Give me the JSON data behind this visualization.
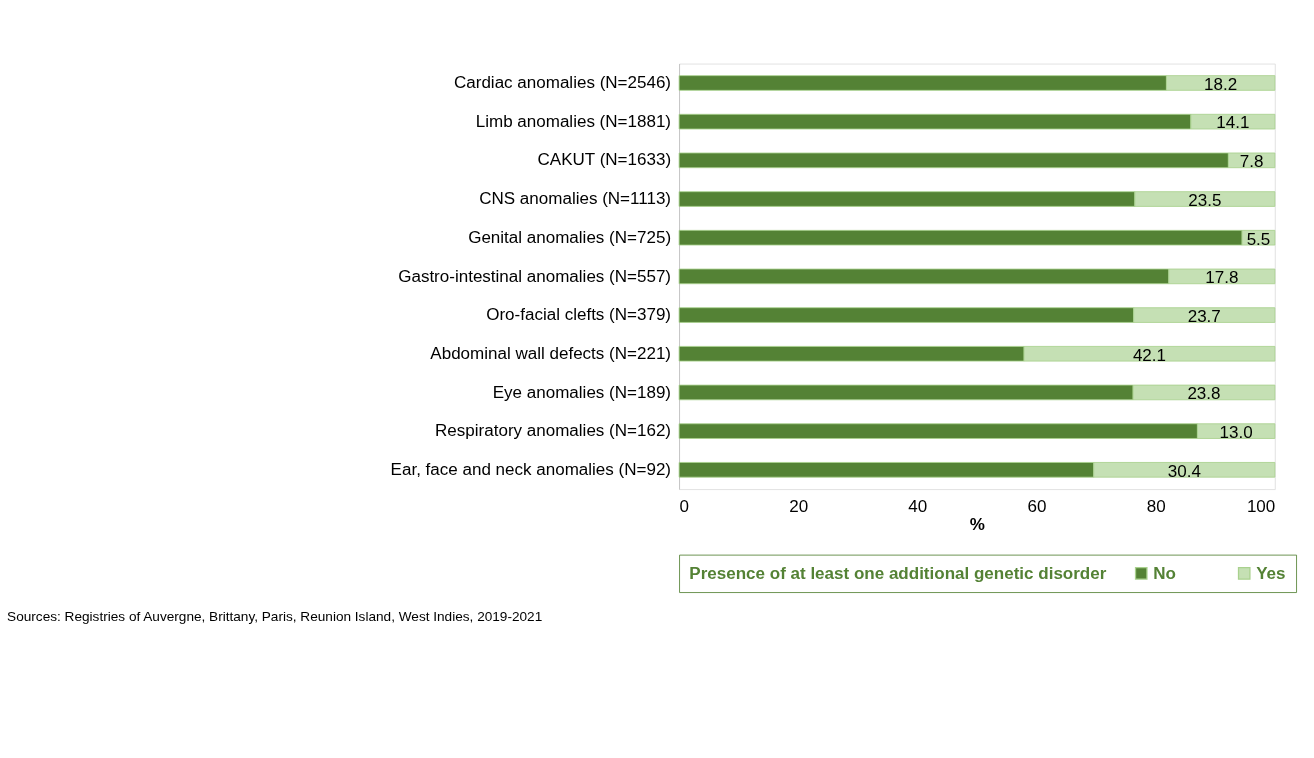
{
  "chart_data": {
    "type": "bar",
    "orientation": "horizontal",
    "stacked": true,
    "categories": [
      "Cardiac anomalies (N=2546)",
      "Limb anomalies (N=1881)",
      "CAKUT (N=1633)",
      "CNS anomalies (N=1113)",
      "Genital anomalies (N=725)",
      "Gastro-intestinal anomalies (N=557)",
      "Oro-facial clefts (N=379)",
      "Abdominal wall defects (N=221)",
      "Eye anomalies (N=189)",
      "Respiratory anomalies (N=162)",
      "Ear, face and neck anomalies (N=92)"
    ],
    "series": [
      {
        "name": "No",
        "color": "#548235",
        "values": [
          81.8,
          85.9,
          92.2,
          76.5,
          94.5,
          82.2,
          76.3,
          57.9,
          76.2,
          87.0,
          69.6
        ]
      },
      {
        "name": "Yes",
        "color": "#c5e0b4",
        "values": [
          18.2,
          14.1,
          7.8,
          23.5,
          5.5,
          17.8,
          23.7,
          42.1,
          23.8,
          13.0,
          30.4
        ],
        "value_labels": [
          "18.2",
          "14.1",
          "7.8",
          "23.5",
          "5.5",
          "17.8",
          "23.7",
          "42.1",
          "23.8",
          "13.0",
          "30.4"
        ]
      }
    ],
    "xlim": [
      0,
      100
    ],
    "xticks": [
      0,
      20,
      40,
      60,
      80,
      100
    ],
    "xlabel": "%",
    "legend_title": "Presence of at least one additional genetic disorder",
    "legend": "bottom",
    "grid": false,
    "annotations": [
      "Sources: Registries of Auvergne, Brittany, Paris, Reunion Island, West Indies, 2019-2021"
    ]
  }
}
